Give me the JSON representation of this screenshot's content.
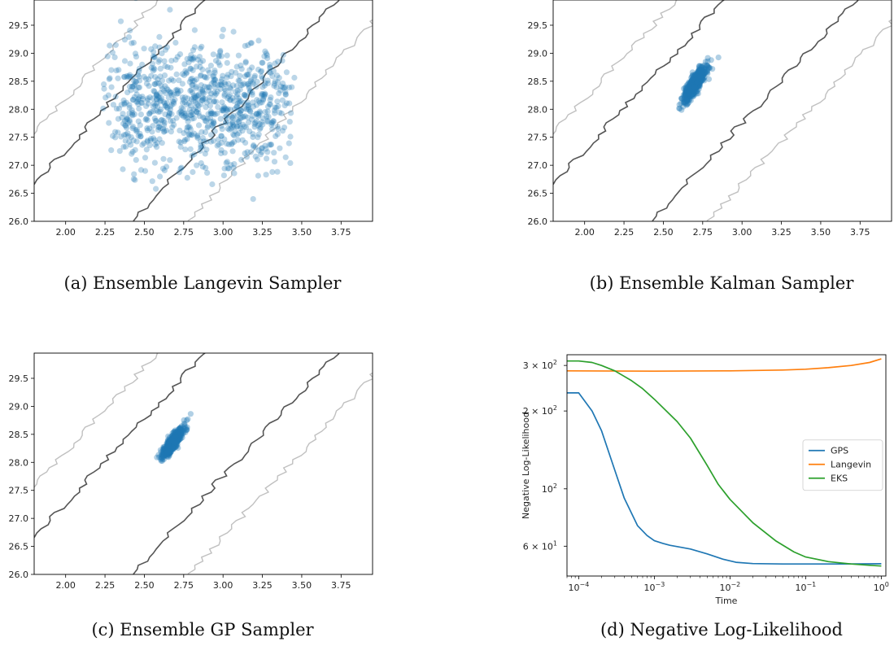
{
  "captions": {
    "a": "(a) Ensemble Langevin Sampler",
    "b": "(b) Ensemble Kalman Sampler",
    "c": "(c) Ensemble GP Sampler",
    "d": "(d) Negative Log-Likelihood"
  },
  "chart_data": [
    {
      "id": "a",
      "type": "scatter",
      "title": "",
      "xlabel": "",
      "ylabel": "",
      "xlim": [
        1.8,
        3.95
      ],
      "ylim": [
        26.0,
        29.95
      ],
      "xticks": [
        "2.00",
        "2.25",
        "2.50",
        "2.75",
        "3.00",
        "3.25",
        "3.50",
        "3.75"
      ],
      "yticks": [
        "26.0",
        "26.5",
        "27.0",
        "27.5",
        "28.0",
        "28.5",
        "29.0",
        "29.5"
      ],
      "grid": false,
      "ensemble": {
        "x_center": 2.85,
        "x_halfwidth": 0.62,
        "y_center": 28.05,
        "y_halfwidth": 1.0,
        "point_color": "#1f77b4",
        "point_opacity": 0.3
      },
      "contours": {
        "inner_color": "#555555",
        "outer_color": "#c0c0c0"
      }
    },
    {
      "id": "b",
      "type": "scatter",
      "title": "",
      "xlabel": "",
      "ylabel": "",
      "xlim": [
        1.8,
        3.95
      ],
      "ylim": [
        26.0,
        29.95
      ],
      "xticks": [
        "2.00",
        "2.25",
        "2.50",
        "2.75",
        "3.00",
        "3.25",
        "3.50",
        "3.75"
      ],
      "yticks": [
        "26.0",
        "26.5",
        "27.0",
        "27.5",
        "28.0",
        "28.5",
        "29.0",
        "29.5"
      ],
      "grid": false,
      "ensemble": {
        "x_center": 2.7,
        "x_sd": 0.035,
        "y_center": 28.45,
        "y_sd": 0.15,
        "correlation": 0.85,
        "point_color": "#1f77b4",
        "point_opacity": 0.35
      },
      "contours": {
        "inner_color": "#555555",
        "outer_color": "#c0c0c0"
      }
    },
    {
      "id": "c",
      "type": "scatter",
      "title": "",
      "xlabel": "",
      "ylabel": "",
      "xlim": [
        1.8,
        3.95
      ],
      "ylim": [
        26.0,
        29.95
      ],
      "xticks": [
        "2.00",
        "2.25",
        "2.50",
        "2.75",
        "3.00",
        "3.25",
        "3.50",
        "3.75"
      ],
      "yticks": [
        "26.0",
        "26.5",
        "27.0",
        "27.5",
        "28.0",
        "28.5",
        "29.0",
        "29.5"
      ],
      "grid": false,
      "ensemble": {
        "x_center": 2.68,
        "x_sd": 0.03,
        "y_center": 28.35,
        "y_sd": 0.12,
        "correlation": 0.85,
        "point_color": "#1f77b4",
        "point_opacity": 0.35
      },
      "contours": {
        "inner_color": "#555555",
        "outer_color": "#c0c0c0"
      }
    },
    {
      "id": "d",
      "type": "line",
      "title": "",
      "xlabel": "Time",
      "ylabel": "Negative Log-Likelihood",
      "xscale": "log",
      "yscale": "log",
      "xlim": [
        7e-05,
        1.15
      ],
      "ylim": [
        46,
        330
      ],
      "xticks": [
        {
          "base": "10",
          "exp": "−4",
          "value": 0.0001
        },
        {
          "base": "10",
          "exp": "−3",
          "value": 0.001
        },
        {
          "base": "10",
          "exp": "−2",
          "value": 0.01
        },
        {
          "base": "10",
          "exp": "−1",
          "value": 0.1
        },
        {
          "base": "10",
          "exp": "0",
          "value": 1
        }
      ],
      "yticks": [
        {
          "label": "6 × 10",
          "exp": "1",
          "value": 60
        },
        {
          "label": "10",
          "exp": "2",
          "value": 100
        },
        {
          "label": "2 × 10",
          "exp": "2",
          "value": 200
        },
        {
          "label": "3 × 10",
          "exp": "2",
          "value": 300
        }
      ],
      "legend": "center-right",
      "series": [
        {
          "name": "GPS",
          "color": "#1f77b4",
          "x": [
            7e-05,
            0.0001,
            0.00015,
            0.0002,
            0.0003,
            0.0004,
            0.0006,
            0.0008,
            0.001,
            0.0013,
            0.0016,
            0.002,
            0.003,
            0.005,
            0.008,
            0.012,
            0.02,
            0.05,
            0.1,
            0.3,
            1.0
          ],
          "y": [
            235,
            235,
            200,
            168,
            118,
            92,
            72,
            66,
            63,
            61.5,
            60.5,
            59.8,
            58.5,
            56,
            53.5,
            52,
            51.4,
            51.2,
            51.2,
            51.2,
            51.3
          ]
        },
        {
          "name": "Langevin",
          "color": "#ff7f0e",
          "x": [
            7e-05,
            0.001,
            0.01,
            0.05,
            0.1,
            0.2,
            0.4,
            0.7,
            1.0
          ],
          "y": [
            286,
            285,
            286,
            288,
            290,
            294,
            300,
            308,
            318
          ]
        },
        {
          "name": "EKS",
          "color": "#2ca02c",
          "x": [
            7e-05,
            0.0001,
            0.00015,
            0.0002,
            0.0003,
            0.0005,
            0.0007,
            0.001,
            0.002,
            0.003,
            0.005,
            0.007,
            0.01,
            0.02,
            0.04,
            0.07,
            0.1,
            0.2,
            0.4,
            0.7,
            1.0
          ],
          "y": [
            312,
            312,
            308,
            300,
            286,
            262,
            244,
            222,
            182,
            157,
            123,
            104,
            91,
            74,
            63,
            57,
            54.5,
            52.3,
            51.2,
            50.6,
            50.3
          ]
        }
      ]
    }
  ]
}
